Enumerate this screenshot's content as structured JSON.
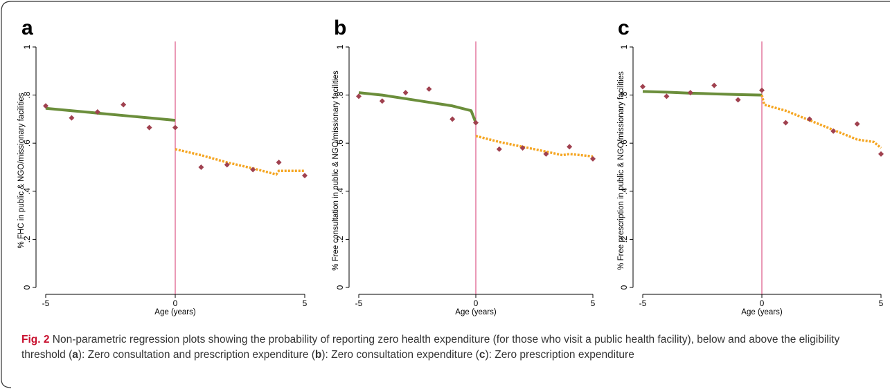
{
  "figure": {
    "label": "Fig. 2",
    "caption_parts": [
      {
        "text": " Non-parametric regression plots showing the probability of reporting zero health expenditure (for those who visit a public health facility), below and above the eligibility threshold (",
        "bold": false
      },
      {
        "text": "a",
        "bold": true
      },
      {
        "text": "): Zero consultation and prescription expenditure (",
        "bold": false
      },
      {
        "text": "b",
        "bold": true
      },
      {
        "text": "): Zero consultation expenditure (",
        "bold": false
      },
      {
        "text": "c",
        "bold": true
      },
      {
        "text": "): Zero prescription expenditure",
        "bold": false
      }
    ]
  },
  "colors": {
    "left_fit": "#6b8e3b",
    "right_fit": "#f5a623",
    "scatter": "#a0414f",
    "cutoff_line": "#d6336c",
    "axis": "#000000",
    "frame": "#333333",
    "fig_label": "#c8102e"
  },
  "chart_data": [
    {
      "panel_label": "a",
      "type": "scatter",
      "xlabel": "Age (years)",
      "ylabel": "% FHC in public & NGO/missionary facilities",
      "xlim": [
        -5,
        5
      ],
      "ylim": [
        0,
        1
      ],
      "xticks": [
        -5,
        0,
        5
      ],
      "yticks": [
        0,
        0.2,
        0.4,
        0.6,
        0.8,
        1
      ],
      "ytick_labels": [
        "0",
        ".2",
        ".4",
        ".6",
        ".8",
        "1"
      ],
      "xtick_labels": [
        "-5",
        "0",
        "5"
      ],
      "cutoff": 0,
      "scatter": {
        "x": [
          -5,
          -4,
          -3,
          -2,
          -1,
          0,
          1,
          2,
          3,
          4,
          5
        ],
        "y": [
          0.755,
          0.705,
          0.73,
          0.76,
          0.665,
          0.665,
          0.5,
          0.51,
          0.49,
          0.52,
          0.465
        ]
      },
      "left_fit": {
        "x": [
          -5,
          -4,
          -3,
          -2,
          -1,
          0
        ],
        "y": [
          0.745,
          0.735,
          0.725,
          0.715,
          0.705,
          0.695
        ]
      },
      "right_fit": {
        "x": [
          0,
          1,
          2,
          3,
          3.9,
          4,
          4.1,
          5
        ],
        "y": [
          0.575,
          0.55,
          0.52,
          0.495,
          0.47,
          0.485,
          0.485,
          0.485
        ]
      }
    },
    {
      "panel_label": "b",
      "type": "scatter",
      "xlabel": "Age (years)",
      "ylabel": "% Free consultation in public & NGO/missionary facilities",
      "xlim": [
        -5,
        5
      ],
      "ylim": [
        0,
        1
      ],
      "xticks": [
        -5,
        0,
        5
      ],
      "yticks": [
        0,
        0.2,
        0.4,
        0.6,
        0.8,
        1
      ],
      "ytick_labels": [
        "0",
        ".2",
        ".4",
        ".6",
        ".8",
        "1"
      ],
      "xtick_labels": [
        "-5",
        "0",
        "5"
      ],
      "cutoff": 0,
      "scatter": {
        "x": [
          -5,
          -4,
          -3,
          -2,
          -1,
          0,
          1,
          2,
          3,
          4,
          5
        ],
        "y": [
          0.795,
          0.775,
          0.81,
          0.825,
          0.7,
          0.685,
          0.575,
          0.58,
          0.555,
          0.585,
          0.535
        ]
      },
      "left_fit": {
        "x": [
          -5,
          -4,
          -3,
          -2,
          -1,
          -0.2,
          0
        ],
        "y": [
          0.81,
          0.8,
          0.785,
          0.77,
          0.755,
          0.735,
          0.685
        ]
      },
      "right_fit": {
        "x": [
          0,
          1,
          2,
          3,
          3.7,
          4,
          5
        ],
        "y": [
          0.63,
          0.605,
          0.585,
          0.565,
          0.55,
          0.555,
          0.545
        ]
      }
    },
    {
      "panel_label": "c",
      "type": "scatter",
      "xlabel": "Age (years)",
      "ylabel": "% Free prescription in public & NGO/missionary facilities",
      "xlim": [
        -5,
        5
      ],
      "ylim": [
        0,
        1
      ],
      "xticks": [
        -5,
        0,
        5
      ],
      "yticks": [
        0,
        0.2,
        0.4,
        0.6,
        0.8,
        1
      ],
      "ytick_labels": [
        "0",
        ".2",
        ".4",
        ".6",
        ".8",
        "1"
      ],
      "xtick_labels": [
        "-5",
        "0",
        "5"
      ],
      "cutoff": 0,
      "scatter": {
        "x": [
          -5,
          -4,
          -3,
          -2,
          -1,
          0,
          1,
          2,
          3,
          4,
          5
        ],
        "y": [
          0.835,
          0.795,
          0.81,
          0.84,
          0.78,
          0.82,
          0.685,
          0.7,
          0.65,
          0.68,
          0.555
        ]
      },
      "left_fit": {
        "x": [
          -5,
          -4,
          -3,
          -2,
          -1,
          0
        ],
        "y": [
          0.815,
          0.812,
          0.808,
          0.805,
          0.802,
          0.8
        ]
      },
      "right_fit": {
        "x": [
          0,
          0.1,
          1,
          2,
          3,
          4,
          4.7,
          5
        ],
        "y": [
          0.8,
          0.76,
          0.735,
          0.695,
          0.655,
          0.615,
          0.605,
          0.58
        ]
      }
    }
  ]
}
